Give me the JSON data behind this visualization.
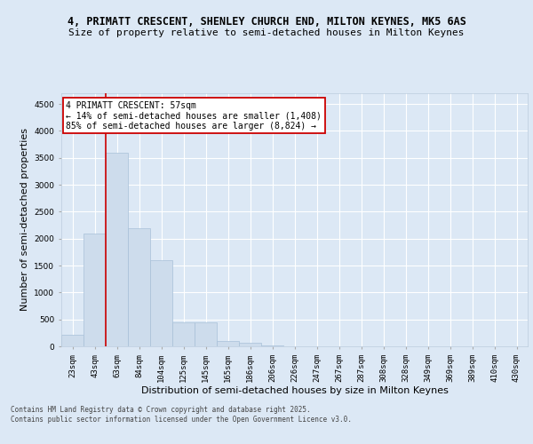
{
  "title_line1": "4, PRIMATT CRESCENT, SHENLEY CHURCH END, MILTON KEYNES, MK5 6AS",
  "title_line2": "Size of property relative to semi-detached houses in Milton Keynes",
  "xlabel": "Distribution of semi-detached houses by size in Milton Keynes",
  "ylabel": "Number of semi-detached properties",
  "categories": [
    "23sqm",
    "43sqm",
    "63sqm",
    "84sqm",
    "104sqm",
    "125sqm",
    "145sqm",
    "165sqm",
    "186sqm",
    "206sqm",
    "226sqm",
    "247sqm",
    "267sqm",
    "287sqm",
    "308sqm",
    "328sqm",
    "349sqm",
    "369sqm",
    "389sqm",
    "410sqm",
    "430sqm"
  ],
  "values": [
    220,
    2100,
    3600,
    2200,
    1600,
    450,
    450,
    100,
    60,
    10,
    5,
    2,
    1,
    0,
    0,
    0,
    0,
    0,
    0,
    0,
    0
  ],
  "bar_color": "#cddcec",
  "bar_edge_color": "#a8c0d8",
  "bar_width": 1.0,
  "vline_x": 1.5,
  "vline_color": "#cc0000",
  "annotation_text": "4 PRIMATT CRESCENT: 57sqm\n← 14% of semi-detached houses are smaller (1,408)\n85% of semi-detached houses are larger (8,824) →",
  "annotation_box_color": "#ffffff",
  "annotation_box_edge": "#cc0000",
  "ylim": [
    0,
    4700
  ],
  "yticks": [
    0,
    500,
    1000,
    1500,
    2000,
    2500,
    3000,
    3500,
    4000,
    4500
  ],
  "footnote": "Contains HM Land Registry data © Crown copyright and database right 2025.\nContains public sector information licensed under the Open Government Licence v3.0.",
  "bg_color": "#dce8f5",
  "plot_bg_color": "#dce8f5",
  "grid_color": "#ffffff",
  "title_fontsize": 8.5,
  "subtitle_fontsize": 8,
  "tick_fontsize": 6.5,
  "label_fontsize": 8,
  "annotation_fontsize": 7,
  "footnote_fontsize": 5.5
}
